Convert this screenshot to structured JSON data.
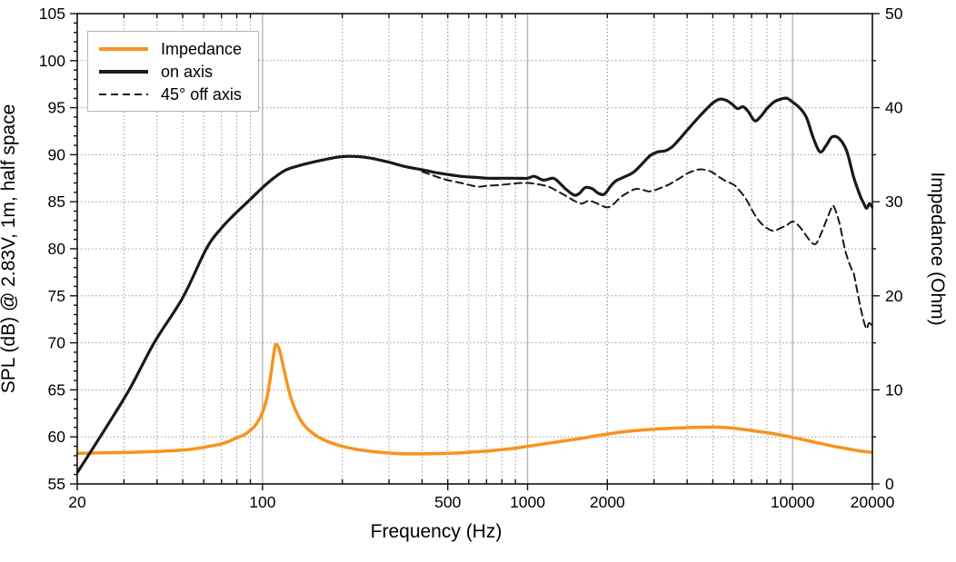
{
  "chart_data": {
    "type": "line",
    "title": "",
    "xlabel": "Frequency (Hz)",
    "ylabel_left": "SPL (dB) @ 2.83V, 1m, half space",
    "ylabel_right": "Impedance (Ohm)",
    "x_scale": "log",
    "xlim": [
      20,
      20000
    ],
    "ylim_left": [
      55,
      105
    ],
    "ylim_right": [
      0,
      50
    ],
    "grid": true,
    "legend_position": "top-left",
    "x_major_ticks": [
      20,
      100,
      500,
      1000,
      2000,
      10000,
      20000
    ],
    "x_tick_labels": [
      "20",
      "100",
      "500",
      "1000",
      "2000",
      "10000",
      "20000"
    ],
    "x_decade_lines": [
      100,
      1000,
      10000
    ],
    "y_left_ticks": [
      55,
      60,
      65,
      70,
      75,
      80,
      85,
      90,
      95,
      100,
      105
    ],
    "y_left_minor_step": 1,
    "y_right_ticks": [
      0,
      10,
      20,
      30,
      40,
      50
    ],
    "y_right_minor_step": 5,
    "colors": {
      "impedance": "#f7941d",
      "on_axis": "#1a1a1a",
      "off_axis": "#1a1a1a",
      "grid": "#999999",
      "grid_decade": "#b0b0b0",
      "axis": "#111111"
    },
    "series": [
      {
        "name": "Impedance",
        "axis": "right",
        "unit": "Ohm",
        "color": "#f7941d",
        "line": "solid",
        "stroke_width": 3.5,
        "points": [
          [
            20,
            3.25
          ],
          [
            25,
            3.3
          ],
          [
            31.5,
            3.35
          ],
          [
            40,
            3.45
          ],
          [
            50,
            3.6
          ],
          [
            56,
            3.75
          ],
          [
            63,
            4.0
          ],
          [
            71,
            4.3
          ],
          [
            80,
            4.9
          ],
          [
            85,
            5.2
          ],
          [
            90,
            5.7
          ],
          [
            95,
            6.4
          ],
          [
            100,
            7.6
          ],
          [
            104,
            9.2
          ],
          [
            108,
            12.0
          ],
          [
            111,
            14.4
          ],
          [
            113,
            14.8
          ],
          [
            116,
            14.2
          ],
          [
            120,
            12.4
          ],
          [
            125,
            10.2
          ],
          [
            130,
            8.6
          ],
          [
            136,
            7.3
          ],
          [
            143,
            6.3
          ],
          [
            150,
            5.7
          ],
          [
            160,
            5.1
          ],
          [
            170,
            4.7
          ],
          [
            180,
            4.4
          ],
          [
            200,
            4.0
          ],
          [
            224,
            3.7
          ],
          [
            250,
            3.5
          ],
          [
            280,
            3.35
          ],
          [
            315,
            3.25
          ],
          [
            355,
            3.2
          ],
          [
            400,
            3.2
          ],
          [
            450,
            3.22
          ],
          [
            500,
            3.25
          ],
          [
            560,
            3.3
          ],
          [
            630,
            3.4
          ],
          [
            710,
            3.5
          ],
          [
            800,
            3.65
          ],
          [
            900,
            3.8
          ],
          [
            1000,
            4.0
          ],
          [
            1120,
            4.2
          ],
          [
            1250,
            4.4
          ],
          [
            1400,
            4.6
          ],
          [
            1600,
            4.85
          ],
          [
            1800,
            5.1
          ],
          [
            2000,
            5.3
          ],
          [
            2240,
            5.5
          ],
          [
            2500,
            5.65
          ],
          [
            2800,
            5.75
          ],
          [
            3150,
            5.85
          ],
          [
            3550,
            5.92
          ],
          [
            4000,
            5.98
          ],
          [
            4500,
            6.02
          ],
          [
            5000,
            6.05
          ],
          [
            5600,
            6.0
          ],
          [
            6300,
            5.85
          ],
          [
            7100,
            5.65
          ],
          [
            8000,
            5.45
          ],
          [
            9000,
            5.2
          ],
          [
            10000,
            4.95
          ],
          [
            11200,
            4.65
          ],
          [
            12500,
            4.35
          ],
          [
            14000,
            4.05
          ],
          [
            16000,
            3.75
          ],
          [
            18000,
            3.5
          ],
          [
            20000,
            3.35
          ]
        ]
      },
      {
        "name": "on axis",
        "axis": "left",
        "unit": "dB",
        "color": "#1a1a1a",
        "line": "solid",
        "stroke_width": 3.2,
        "points": [
          [
            20,
            56.2
          ],
          [
            24.4,
            60.0
          ],
          [
            31.4,
            65.0
          ],
          [
            39,
            70.0
          ],
          [
            50,
            74.8
          ],
          [
            61.4,
            80.0
          ],
          [
            70,
            82.2
          ],
          [
            80,
            83.9
          ],
          [
            88,
            85.0
          ],
          [
            100,
            86.5
          ],
          [
            110,
            87.5
          ],
          [
            123,
            88.4
          ],
          [
            140,
            88.9
          ],
          [
            160,
            89.3
          ],
          [
            180,
            89.6
          ],
          [
            200,
            89.8
          ],
          [
            230,
            89.8
          ],
          [
            260,
            89.6
          ],
          [
            300,
            89.2
          ],
          [
            350,
            88.7
          ],
          [
            400,
            88.4
          ],
          [
            450,
            88.1
          ],
          [
            500,
            87.9
          ],
          [
            560,
            87.7
          ],
          [
            630,
            87.6
          ],
          [
            710,
            87.5
          ],
          [
            800,
            87.5
          ],
          [
            900,
            87.5
          ],
          [
            1000,
            87.5
          ],
          [
            1060,
            87.7
          ],
          [
            1150,
            87.3
          ],
          [
            1250,
            87.5
          ],
          [
            1320,
            87.0
          ],
          [
            1400,
            86.3
          ],
          [
            1500,
            85.7
          ],
          [
            1570,
            85.9
          ],
          [
            1650,
            86.5
          ],
          [
            1750,
            86.4
          ],
          [
            1850,
            85.9
          ],
          [
            1950,
            85.8
          ],
          [
            2050,
            86.6
          ],
          [
            2150,
            87.2
          ],
          [
            2300,
            87.6
          ],
          [
            2500,
            88.1
          ],
          [
            2700,
            89.0
          ],
          [
            2900,
            89.9
          ],
          [
            3100,
            90.3
          ],
          [
            3300,
            90.4
          ],
          [
            3500,
            90.8
          ],
          [
            3700,
            91.5
          ],
          [
            4000,
            92.6
          ],
          [
            4300,
            93.6
          ],
          [
            4600,
            94.5
          ],
          [
            5000,
            95.5
          ],
          [
            5300,
            95.9
          ],
          [
            5600,
            95.8
          ],
          [
            5900,
            95.4
          ],
          [
            6200,
            94.9
          ],
          [
            6500,
            95.1
          ],
          [
            6800,
            94.6
          ],
          [
            7200,
            93.6
          ],
          [
            7600,
            94.1
          ],
          [
            8000,
            94.9
          ],
          [
            8500,
            95.6
          ],
          [
            9000,
            95.9
          ],
          [
            9500,
            96.0
          ],
          [
            10000,
            95.6
          ],
          [
            10700,
            94.9
          ],
          [
            11300,
            93.9
          ],
          [
            12000,
            91.7
          ],
          [
            12700,
            90.3
          ],
          [
            13400,
            91.0
          ],
          [
            14100,
            91.9
          ],
          [
            15000,
            91.7
          ],
          [
            16000,
            90.4
          ],
          [
            17000,
            87.6
          ],
          [
            18000,
            85.6
          ],
          [
            18500,
            84.9
          ],
          [
            19000,
            84.3
          ],
          [
            19500,
            84.8
          ],
          [
            20000,
            84.4
          ]
        ]
      },
      {
        "name": "45° off axis",
        "axis": "left",
        "unit": "dB",
        "color": "#1a1a1a",
        "line": "dashed",
        "stroke_width": 2,
        "points": [
          [
            400,
            88.2
          ],
          [
            430,
            87.9
          ],
          [
            460,
            87.6
          ],
          [
            500,
            87.3
          ],
          [
            560,
            87.0
          ],
          [
            600,
            86.8
          ],
          [
            650,
            86.6
          ],
          [
            710,
            86.7
          ],
          [
            800,
            86.8
          ],
          [
            900,
            86.95
          ],
          [
            1000,
            87.0
          ],
          [
            1100,
            86.85
          ],
          [
            1200,
            86.6
          ],
          [
            1300,
            86.1
          ],
          [
            1400,
            85.6
          ],
          [
            1500,
            85.1
          ],
          [
            1600,
            84.8
          ],
          [
            1700,
            85.1
          ],
          [
            1800,
            84.9
          ],
          [
            1900,
            84.6
          ],
          [
            2000,
            84.4
          ],
          [
            2100,
            84.7
          ],
          [
            2250,
            85.5
          ],
          [
            2400,
            86.0
          ],
          [
            2550,
            86.35
          ],
          [
            2700,
            86.3
          ],
          [
            2850,
            86.1
          ],
          [
            3000,
            86.2
          ],
          [
            3200,
            86.5
          ],
          [
            3400,
            86.8
          ],
          [
            3600,
            87.2
          ],
          [
            3800,
            87.6
          ],
          [
            4000,
            88.0
          ],
          [
            4250,
            88.3
          ],
          [
            4500,
            88.45
          ],
          [
            4800,
            88.3
          ],
          [
            5000,
            88.1
          ],
          [
            5300,
            87.6
          ],
          [
            5600,
            87.2
          ],
          [
            6000,
            86.8
          ],
          [
            6300,
            86.2
          ],
          [
            6700,
            85.2
          ],
          [
            7100,
            83.9
          ],
          [
            7500,
            82.9
          ],
          [
            8000,
            82.2
          ],
          [
            8500,
            81.9
          ],
          [
            9000,
            82.2
          ],
          [
            9500,
            82.5
          ],
          [
            10000,
            82.9
          ],
          [
            10500,
            82.5
          ],
          [
            11000,
            81.8
          ],
          [
            11600,
            80.9
          ],
          [
            12200,
            80.5
          ],
          [
            12800,
            81.6
          ],
          [
            13400,
            83.0
          ],
          [
            14000,
            84.3
          ],
          [
            14300,
            84.5
          ],
          [
            15000,
            82.8
          ],
          [
            15800,
            79.8
          ],
          [
            16600,
            78.0
          ],
          [
            17000,
            77.4
          ],
          [
            17700,
            74.9
          ],
          [
            18400,
            72.7
          ],
          [
            19000,
            71.5
          ],
          [
            19400,
            72.1
          ],
          [
            20000,
            71.8
          ]
        ]
      }
    ],
    "legend": [
      {
        "label": "Impedance"
      },
      {
        "label": "on axis"
      },
      {
        "label": "45° off axis"
      }
    ]
  }
}
